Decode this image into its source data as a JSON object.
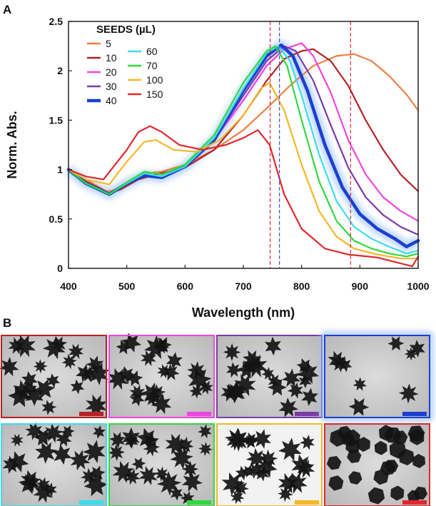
{
  "panel_labels": {
    "a": "A",
    "b": "B"
  },
  "chart_data": {
    "type": "line",
    "title": "",
    "xlabel": "Wavelength (nm)",
    "ylabel": "Norm. Abs.",
    "xlim": [
      400,
      1000
    ],
    "ylim": [
      0,
      2.5
    ],
    "xticks": [
      400,
      500,
      600,
      700,
      800,
      900,
      1000
    ],
    "yticks": [
      0,
      0.5,
      1,
      1.5,
      2,
      2.5
    ],
    "ytick_labels": [
      "0",
      "0.5",
      "1",
      "1.5",
      "2",
      "2.5"
    ],
    "legend_title": "SEEDS (µL)",
    "vlines": [
      {
        "x": 746,
        "color": "#e0282d"
      },
      {
        "x": 762,
        "color": "#3f4fd8"
      },
      {
        "x": 884,
        "color": "#e0282d"
      }
    ],
    "series": [
      {
        "name": "5",
        "color": "#ee7f45",
        "width": 2.2,
        "glow": false,
        "points": [
          [
            400,
            1.0
          ],
          [
            430,
            0.9
          ],
          [
            465,
            0.78
          ],
          [
            480,
            0.79
          ],
          [
            500,
            0.86
          ],
          [
            530,
            0.96
          ],
          [
            560,
            0.98
          ],
          [
            600,
            1.05
          ],
          [
            650,
            1.2
          ],
          [
            700,
            1.4
          ],
          [
            740,
            1.62
          ],
          [
            780,
            1.85
          ],
          [
            820,
            2.05
          ],
          [
            860,
            2.15
          ],
          [
            890,
            2.17
          ],
          [
            920,
            2.1
          ],
          [
            950,
            1.95
          ],
          [
            980,
            1.76
          ],
          [
            1000,
            1.6
          ]
        ]
      },
      {
        "name": "10",
        "color": "#b52226",
        "width": 2.2,
        "glow": false,
        "points": [
          [
            400,
            1.0
          ],
          [
            430,
            0.88
          ],
          [
            470,
            0.76
          ],
          [
            490,
            0.8
          ],
          [
            520,
            0.9
          ],
          [
            550,
            0.95
          ],
          [
            600,
            1.02
          ],
          [
            650,
            1.2
          ],
          [
            700,
            1.55
          ],
          [
            740,
            1.9
          ],
          [
            770,
            2.12
          ],
          [
            800,
            2.2
          ],
          [
            820,
            2.22
          ],
          [
            850,
            2.1
          ],
          [
            880,
            1.85
          ],
          [
            910,
            1.5
          ],
          [
            940,
            1.2
          ],
          [
            970,
            0.95
          ],
          [
            1000,
            0.78
          ]
        ]
      },
      {
        "name": "20",
        "color": "#f046e0",
        "width": 2.2,
        "glow": false,
        "points": [
          [
            400,
            1.0
          ],
          [
            430,
            0.87
          ],
          [
            470,
            0.76
          ],
          [
            500,
            0.86
          ],
          [
            530,
            0.95
          ],
          [
            560,
            0.93
          ],
          [
            600,
            1.03
          ],
          [
            650,
            1.3
          ],
          [
            700,
            1.7
          ],
          [
            740,
            2.05
          ],
          [
            770,
            2.22
          ],
          [
            800,
            2.28
          ],
          [
            820,
            2.15
          ],
          [
            850,
            1.78
          ],
          [
            880,
            1.3
          ],
          [
            910,
            0.95
          ],
          [
            940,
            0.72
          ],
          [
            970,
            0.58
          ],
          [
            1000,
            0.48
          ]
        ]
      },
      {
        "name": "30",
        "color": "#7a3ba8",
        "width": 2.2,
        "glow": false,
        "points": [
          [
            400,
            1.0
          ],
          [
            430,
            0.86
          ],
          [
            470,
            0.75
          ],
          [
            500,
            0.86
          ],
          [
            530,
            0.95
          ],
          [
            560,
            0.93
          ],
          [
            600,
            1.03
          ],
          [
            650,
            1.3
          ],
          [
            700,
            1.75
          ],
          [
            740,
            2.1
          ],
          [
            770,
            2.25
          ],
          [
            790,
            2.2
          ],
          [
            820,
            1.9
          ],
          [
            850,
            1.45
          ],
          [
            880,
            1.02
          ],
          [
            910,
            0.72
          ],
          [
            940,
            0.54
          ],
          [
            970,
            0.42
          ],
          [
            1000,
            0.34
          ]
        ]
      },
      {
        "name": "40",
        "color": "#1c3fcf",
        "width": 4.5,
        "glow": true,
        "points": [
          [
            400,
            1.0
          ],
          [
            430,
            0.86
          ],
          [
            470,
            0.75
          ],
          [
            500,
            0.86
          ],
          [
            530,
            0.94
          ],
          [
            560,
            0.92
          ],
          [
            600,
            1.03
          ],
          [
            650,
            1.3
          ],
          [
            700,
            1.8
          ],
          [
            740,
            2.15
          ],
          [
            765,
            2.26
          ],
          [
            785,
            2.15
          ],
          [
            810,
            1.8
          ],
          [
            840,
            1.25
          ],
          [
            870,
            0.82
          ],
          [
            900,
            0.55
          ],
          [
            930,
            0.4
          ],
          [
            960,
            0.3
          ],
          [
            980,
            0.22
          ],
          [
            1000,
            0.28
          ]
        ]
      },
      {
        "name": "60",
        "color": "#3cdce8",
        "width": 2.2,
        "glow": false,
        "points": [
          [
            400,
            1.0
          ],
          [
            430,
            0.86
          ],
          [
            470,
            0.75
          ],
          [
            500,
            0.86
          ],
          [
            530,
            0.96
          ],
          [
            560,
            0.93
          ],
          [
            600,
            1.03
          ],
          [
            650,
            1.32
          ],
          [
            700,
            1.82
          ],
          [
            740,
            2.18
          ],
          [
            760,
            2.25
          ],
          [
            780,
            2.1
          ],
          [
            800,
            1.75
          ],
          [
            830,
            1.15
          ],
          [
            860,
            0.68
          ],
          [
            890,
            0.42
          ],
          [
            920,
            0.3
          ],
          [
            950,
            0.22
          ],
          [
            980,
            0.15
          ],
          [
            1000,
            0.18
          ]
        ]
      },
      {
        "name": "70",
        "color": "#30d83c",
        "width": 2.2,
        "glow": false,
        "points": [
          [
            400,
            1.0
          ],
          [
            430,
            0.86
          ],
          [
            470,
            0.75
          ],
          [
            500,
            0.87
          ],
          [
            530,
            0.98
          ],
          [
            560,
            0.95
          ],
          [
            600,
            1.05
          ],
          [
            650,
            1.35
          ],
          [
            700,
            1.88
          ],
          [
            740,
            2.2
          ],
          [
            755,
            2.25
          ],
          [
            775,
            2.05
          ],
          [
            800,
            1.5
          ],
          [
            830,
            0.88
          ],
          [
            860,
            0.48
          ],
          [
            890,
            0.28
          ],
          [
            920,
            0.2
          ],
          [
            950,
            0.15
          ],
          [
            980,
            0.12
          ],
          [
            1000,
            0.15
          ]
        ]
      },
      {
        "name": "100",
        "color": "#f5b828",
        "width": 2.2,
        "glow": false,
        "points": [
          [
            400,
            1.0
          ],
          [
            430,
            0.9
          ],
          [
            470,
            0.85
          ],
          [
            500,
            1.08
          ],
          [
            530,
            1.28
          ],
          [
            550,
            1.3
          ],
          [
            580,
            1.2
          ],
          [
            620,
            1.18
          ],
          [
            660,
            1.3
          ],
          [
            700,
            1.55
          ],
          [
            730,
            1.82
          ],
          [
            745,
            1.88
          ],
          [
            770,
            1.6
          ],
          [
            800,
            1.05
          ],
          [
            830,
            0.58
          ],
          [
            860,
            0.32
          ],
          [
            890,
            0.2
          ],
          [
            930,
            0.14
          ],
          [
            970,
            0.1
          ],
          [
            1000,
            0.1
          ]
        ]
      },
      {
        "name": "150",
        "color": "#e0282d",
        "width": 2.2,
        "glow": false,
        "points": [
          [
            400,
            1.0
          ],
          [
            430,
            0.93
          ],
          [
            460,
            0.9
          ],
          [
            500,
            1.2
          ],
          [
            520,
            1.38
          ],
          [
            540,
            1.44
          ],
          [
            560,
            1.38
          ],
          [
            590,
            1.25
          ],
          [
            630,
            1.2
          ],
          [
            670,
            1.25
          ],
          [
            700,
            1.32
          ],
          [
            725,
            1.4
          ],
          [
            745,
            1.25
          ],
          [
            770,
            0.75
          ],
          [
            800,
            0.4
          ],
          [
            840,
            0.2
          ],
          [
            880,
            0.14
          ],
          [
            930,
            0.11
          ],
          [
            970,
            0.05
          ],
          [
            990,
            0.02
          ],
          [
            1000,
            0.12
          ]
        ]
      }
    ]
  },
  "tem_panels": [
    {
      "name": "10",
      "color": "#b52226"
    },
    {
      "name": "20",
      "color": "#f046e0"
    },
    {
      "name": "30",
      "color": "#7a3ba8"
    },
    {
      "name": "40",
      "color": "#1c3fcf"
    },
    {
      "name": "60",
      "color": "#3cdce8"
    },
    {
      "name": "70",
      "color": "#30d83c"
    },
    {
      "name": "100",
      "color": "#f5b828"
    },
    {
      "name": "150",
      "color": "#e0282d"
    }
  ]
}
